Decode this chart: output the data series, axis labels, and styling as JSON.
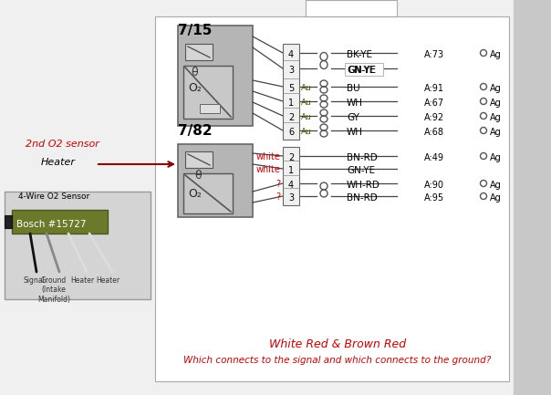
{
  "bg_color": "#f0f0f0",
  "main_box_bg": "#ffffff",
  "right_panel_color": "#c8c8c8",
  "connector_fill": "#b8b8b8",
  "connector_edge": "#555555",
  "pin_box_fill": "#f0f0f0",
  "pin_box_edge": "#555555",
  "wire_color": "#333333",
  "sensor_bg_color": "#d4d4d4",
  "sensor_box_color": "#6b7a2a",
  "sensor_edge_color": "#4a5520",
  "label_715": "7/15",
  "label_782": "7/82",
  "pins_715": [
    {
      "pin": "4",
      "label": "BK-YE",
      "addr": "A:73",
      "has_ag": true,
      "au": false
    },
    {
      "pin": "3",
      "label": "GN-YE",
      "addr": "",
      "has_ag": false,
      "au": false
    },
    {
      "pin": "5",
      "label": "BU",
      "addr": "A:91",
      "has_ag": true,
      "au": true
    },
    {
      "pin": "1",
      "label": "WH",
      "addr": "A:67",
      "has_ag": true,
      "au": true
    },
    {
      "pin": "2",
      "label": "GY",
      "addr": "A:92",
      "has_ag": true,
      "au": true
    },
    {
      "pin": "6",
      "label": "WH",
      "addr": "A:68",
      "has_ag": true,
      "au": true
    }
  ],
  "pins_782": [
    {
      "pin": "2",
      "label": "BN-RD",
      "addr": "A:49",
      "has_ag": true,
      "has_x": false,
      "wire_label": "white"
    },
    {
      "pin": "1",
      "label": "GN-YE",
      "addr": "",
      "has_ag": false,
      "has_x": false,
      "wire_label": "white"
    },
    {
      "pin": "4",
      "label": "WH-RD",
      "addr": "A:90",
      "has_ag": true,
      "has_x": true,
      "wire_label": "?"
    },
    {
      "pin": "3",
      "label": "BN-RD",
      "addr": "A:95",
      "has_ag": true,
      "has_x": true,
      "wire_label": "?"
    }
  ],
  "bottom_text_line1": "White Red & Brown Red",
  "bottom_text_line2": "Which connects to the signal and which connects to the ground?",
  "label_2nd_o2": "2nd O2 sensor",
  "label_heater": "Heater",
  "sensor_label": "4-Wire O2 Sensor",
  "sensor_model": "Bosch #15727",
  "wire_labels_sensor": [
    "Signal",
    "Ground\n(Intake\nManifold)",
    "Heater",
    "Heater"
  ]
}
